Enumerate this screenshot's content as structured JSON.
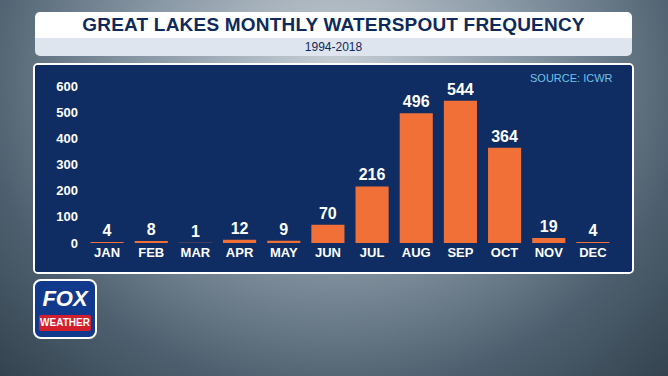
{
  "chart_data": {
    "type": "bar",
    "title": "GREAT LAKES MONTHLY WATERSPOUT FREQUENCY",
    "subtitle": "1994-2018",
    "source": "SOURCE: ICWR",
    "logo": [
      "FOX",
      "WEATHER"
    ],
    "categories": [
      "JAN",
      "FEB",
      "MAR",
      "APR",
      "MAY",
      "JUN",
      "JUL",
      "AUG",
      "SEP",
      "OCT",
      "NOV",
      "DEC"
    ],
    "values": [
      4,
      8,
      1,
      12,
      9,
      70,
      216,
      496,
      544,
      364,
      19,
      4
    ],
    "color": "#f07038",
    "ylim": [
      0,
      600
    ],
    "yticks": [
      0,
      100,
      200,
      300,
      400,
      500,
      600
    ],
    "grid": false,
    "data_labels": true
  }
}
